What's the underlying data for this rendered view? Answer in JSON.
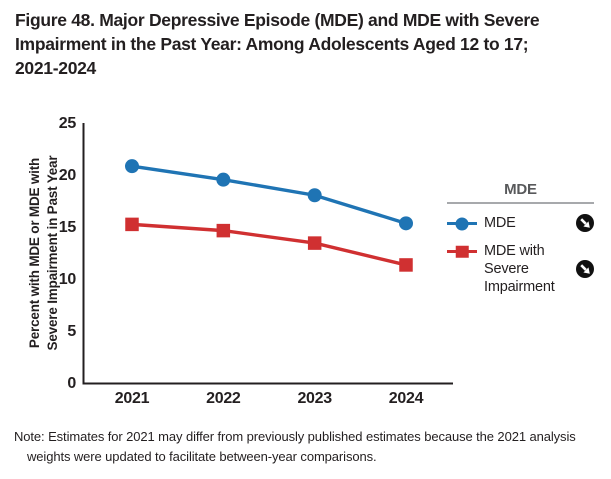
{
  "figure": {
    "title_lines": [
      "Figure 48. Major Depressive Episode (MDE) and MDE with Severe",
      "Impairment in the Past Year: Among Adolescents Aged 12 to 17;",
      "2021-2024"
    ]
  },
  "chart_data": {
    "type": "line",
    "title": "Figure 48. Major Depressive Episode (MDE) and MDE with Severe Impairment in the Past Year: Among Adolescents Aged 12 to 17; 2021-2024",
    "categories": [
      "2021",
      "2022",
      "2023",
      "2024"
    ],
    "series": [
      {
        "name": "MDE",
        "values": [
          20.9,
          19.6,
          18.1,
          15.4
        ],
        "color": "#1f74b4",
        "marker": "circle",
        "trend": "significant-decrease"
      },
      {
        "name": "MDE with Severe Impairment",
        "values": [
          15.3,
          14.7,
          13.5,
          11.4
        ],
        "color": "#d03031",
        "marker": "square",
        "trend": "significant-decrease"
      }
    ],
    "xlabel": "",
    "ylabel": "Percent with MDE or MDE with Severe Impairment in Past Year",
    "ylabel_lines": [
      "Percent with MDE or MDE with",
      "Severe Impairment in Past Year"
    ],
    "ylim": [
      0,
      25
    ],
    "yticks": [
      0,
      5,
      10,
      15,
      20,
      25
    ],
    "grid": false,
    "legend_position": "right"
  },
  "legend": {
    "header": "MDE",
    "entries": [
      {
        "label_lines": [
          "MDE"
        ],
        "trend_icon": "arrow-down-right-icon"
      },
      {
        "label_lines": [
          "MDE with",
          "Severe",
          "Impairment"
        ],
        "trend_icon": "arrow-down-right-icon"
      }
    ]
  },
  "note": {
    "lines": [
      "Note: Estimates for 2021 may differ from previously published estimates because the 2021 analysis",
      "weights were updated to facilitate between-year comparisons."
    ]
  },
  "colors": {
    "axis": "#231f20",
    "mde_line": "#1f74b4",
    "severe_line": "#d03031",
    "legend_header": "#58595b",
    "legend_rule": "#a7a9ac",
    "trend_icon_bg": "#111111"
  }
}
